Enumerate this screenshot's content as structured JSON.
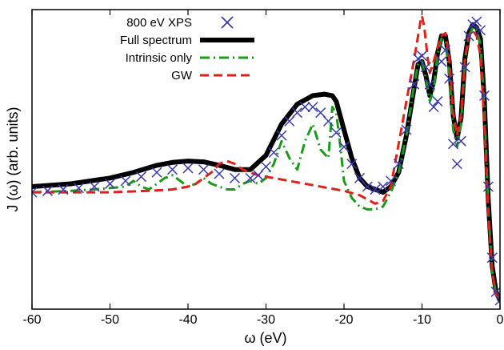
{
  "chart_data": {
    "type": "line",
    "title": "",
    "xlabel": "ω (eV)",
    "ylabel": "J (ω) (arb. units)",
    "xlim": [
      -60,
      0
    ],
    "ylim": [
      0,
      1.0
    ],
    "x_ticks": [
      -60,
      -50,
      -40,
      -30,
      -20,
      -10,
      0
    ],
    "x_tick_labels": [
      "-60",
      "-50",
      "-40",
      "-30",
      "-20",
      "-10",
      "0"
    ],
    "y_tick_labels_shown": false,
    "grid": false,
    "legend_position": "top-left",
    "series": [
      {
        "name": "800 eV XPS",
        "style": "markers-x",
        "color": "#3a3ab0",
        "x": [
          -60,
          -58,
          -56,
          -54,
          -52,
          -50,
          -48,
          -46,
          -44,
          -42,
          -40,
          -38,
          -36,
          -34,
          -32,
          -31,
          -30,
          -29,
          -28,
          -27,
          -26,
          -25,
          -24,
          -23,
          -22,
          -21,
          -20,
          -19,
          -18,
          -17,
          -16,
          -15,
          -14,
          -13,
          -12,
          -11,
          -10.5,
          -10,
          -9.5,
          -9,
          -8.5,
          -8,
          -7.5,
          -7,
          -6.5,
          -6,
          -5.5,
          -5,
          -4.5,
          -4,
          -3.5,
          -3,
          -2.5,
          -2,
          -1.5,
          -1,
          -0.5,
          0
        ],
        "y": [
          0.38,
          0.385,
          0.39,
          0.395,
          0.4,
          0.41,
          0.42,
          0.435,
          0.45,
          0.46,
          0.465,
          0.46,
          0.445,
          0.43,
          0.43,
          0.44,
          0.47,
          0.52,
          0.58,
          0.63,
          0.66,
          0.68,
          0.68,
          0.66,
          0.63,
          0.59,
          0.54,
          0.48,
          0.43,
          0.4,
          0.39,
          0.4,
          0.42,
          0.48,
          0.6,
          0.76,
          0.85,
          0.86,
          0.82,
          0.76,
          0.68,
          0.7,
          0.84,
          0.88,
          0.78,
          0.55,
          0.48,
          0.56,
          0.82,
          0.93,
          0.97,
          0.98,
          0.95,
          0.72,
          0.4,
          0.15,
          0.03,
          0.0
        ]
      },
      {
        "name": "Full spectrum",
        "style": "solid",
        "color": "#000000",
        "x": [
          -60,
          -55,
          -50,
          -47,
          -44,
          -42,
          -40,
          -38,
          -36,
          -34,
          -32,
          -30,
          -28,
          -26,
          -24,
          -22.5,
          -21.5,
          -21,
          -20,
          -19,
          -18,
          -17,
          -16,
          -15,
          -14,
          -13,
          -12,
          -11,
          -10.5,
          -10,
          -9.5,
          -9,
          -8.5,
          -8,
          -7.5,
          -7,
          -6.5,
          -6,
          -5.5,
          -5,
          -4.5,
          -4,
          -3.5,
          -3,
          -2.5,
          -2,
          -1.5,
          -1,
          -0.5,
          0
        ],
        "y": [
          0.4,
          0.41,
          0.43,
          0.45,
          0.475,
          0.485,
          0.49,
          0.487,
          0.475,
          0.46,
          0.46,
          0.51,
          0.62,
          0.69,
          0.72,
          0.725,
          0.72,
          0.7,
          0.6,
          0.5,
          0.43,
          0.4,
          0.39,
          0.38,
          0.4,
          0.45,
          0.58,
          0.75,
          0.83,
          0.84,
          0.79,
          0.72,
          0.77,
          0.87,
          0.93,
          0.93,
          0.84,
          0.65,
          0.57,
          0.64,
          0.85,
          0.94,
          0.97,
          0.96,
          0.92,
          0.7,
          0.35,
          0.12,
          0.03,
          0.0
        ]
      },
      {
        "name": "Intrinsic only",
        "style": "dash-dot",
        "color": "#1a9a1a",
        "x": [
          -60,
          -55,
          -52,
          -50,
          -48,
          -47,
          -46,
          -45,
          -44,
          -43,
          -42,
          -41,
          -40,
          -39,
          -38,
          -37,
          -36,
          -35,
          -34,
          -33,
          -32,
          -31,
          -30,
          -29,
          -28,
          -27,
          -26,
          -25,
          -24,
          -23,
          -22,
          -21.5,
          -21,
          -20.5,
          -20,
          -19,
          -18,
          -17,
          -16,
          -15,
          -14,
          -13,
          -12,
          -11,
          -10.5,
          -10,
          -9.5,
          -9,
          -8.5,
          -8,
          -7.5,
          -7,
          -6.5,
          -6,
          -5.5,
          -5,
          -4.5,
          -4,
          -3.5,
          -3,
          -2.5,
          -2,
          -1.5,
          -1,
          -0.5,
          0
        ],
        "y": [
          0.38,
          0.385,
          0.39,
          0.395,
          0.4,
          0.42,
          0.4,
          0.39,
          0.41,
          0.43,
          0.44,
          0.42,
          0.4,
          0.41,
          0.43,
          0.41,
          0.4,
          0.39,
          0.39,
          0.41,
          0.42,
          0.41,
          0.43,
          0.48,
          0.56,
          0.5,
          0.46,
          0.56,
          0.62,
          0.53,
          0.5,
          0.68,
          0.66,
          0.55,
          0.42,
          0.36,
          0.33,
          0.32,
          0.32,
          0.33,
          0.38,
          0.45,
          0.58,
          0.76,
          0.83,
          0.84,
          0.78,
          0.7,
          0.74,
          0.87,
          0.92,
          0.91,
          0.8,
          0.6,
          0.54,
          0.62,
          0.84,
          0.93,
          0.96,
          0.95,
          0.9,
          0.68,
          0.32,
          0.1,
          0.02,
          0.0
        ]
      },
      {
        "name": "GW",
        "style": "dashed",
        "color": "#e0201a",
        "x": [
          -60,
          -55,
          -50,
          -45,
          -42,
          -40,
          -39,
          -38,
          -37,
          -36,
          -35,
          -34,
          -33,
          -32,
          -31,
          -30,
          -28,
          -26,
          -24,
          -22,
          -20,
          -18,
          -17,
          -16,
          -15,
          -14,
          -13,
          -12,
          -11,
          -10.5,
          -10.2,
          -10,
          -9.7,
          -9.3,
          -9,
          -8.5,
          -8,
          -7.5,
          -7,
          -6.5,
          -6,
          -5.5,
          -5,
          -4.5,
          -4,
          -3.5,
          -3,
          -2.5,
          -2,
          -1.5,
          -1,
          -0.5,
          0
        ],
        "y": [
          0.38,
          0.38,
          0.38,
          0.385,
          0.39,
          0.4,
          0.41,
          0.43,
          0.45,
          0.48,
          0.49,
          0.48,
          0.46,
          0.45,
          0.44,
          0.435,
          0.425,
          0.415,
          0.405,
          0.395,
          0.385,
          0.37,
          0.355,
          0.34,
          0.35,
          0.4,
          0.55,
          0.7,
          0.85,
          0.93,
          0.98,
          1.0,
          0.96,
          0.86,
          0.8,
          0.84,
          0.89,
          0.93,
          0.94,
          0.85,
          0.66,
          0.58,
          0.65,
          0.85,
          0.93,
          0.95,
          0.93,
          0.86,
          0.62,
          0.3,
          0.1,
          0.02,
          0.0
        ]
      }
    ]
  }
}
